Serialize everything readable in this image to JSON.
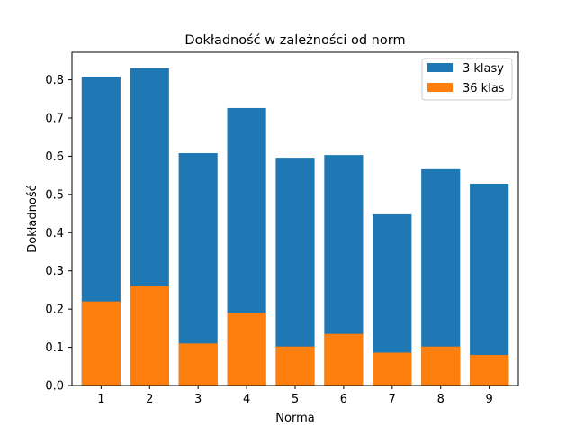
{
  "chart_data": {
    "type": "bar",
    "title": "Dokładność w zależności od norm",
    "xlabel": "Norma",
    "ylabel": "Dokładność",
    "categories": [
      "1",
      "2",
      "3",
      "4",
      "5",
      "6",
      "7",
      "8",
      "9"
    ],
    "series": [
      {
        "name": "3 klasy",
        "color": "#1f77b4",
        "values": [
          0.808,
          0.83,
          0.608,
          0.726,
          0.596,
          0.603,
          0.448,
          0.566,
          0.528
        ]
      },
      {
        "name": "36 klas",
        "color": "#ff7f0e",
        "values": [
          0.22,
          0.26,
          0.11,
          0.19,
          0.102,
          0.135,
          0.086,
          0.102,
          0.08
        ]
      }
    ],
    "ylim": [
      0,
      0.872
    ],
    "yticks": [
      0.0,
      0.1,
      0.2,
      0.3,
      0.4,
      0.5,
      0.6,
      0.7,
      0.8
    ],
    "ytick_labels": [
      "0.0",
      "0.1",
      "0.2",
      "0.3",
      "0.4",
      "0.5",
      "0.6",
      "0.7",
      "0.8"
    ],
    "overlay": true,
    "grid": false,
    "legend_position": "top-right"
  }
}
